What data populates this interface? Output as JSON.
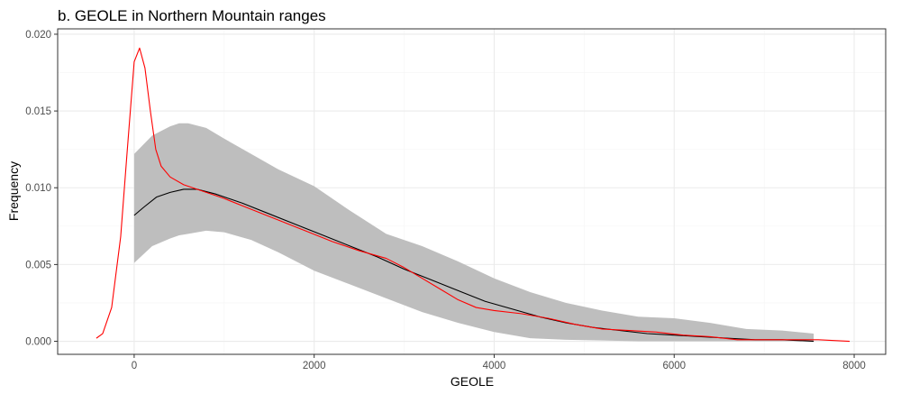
{
  "chart_data": {
    "type": "line",
    "title": "b. GEOLE in Northern Mountain ranges",
    "xlabel": "GEOLE",
    "ylabel": "Frequency",
    "xlim": [
      -850,
      8350
    ],
    "ylim": [
      -0.00085,
      0.02035
    ],
    "x_ticks": [
      0,
      2000,
      4000,
      6000,
      8000
    ],
    "x_tick_labels": [
      "0",
      "2000",
      "4000",
      "6000",
      "8000"
    ],
    "y_ticks": [
      0,
      0.005,
      0.01,
      0.015,
      0.02
    ],
    "y_tick_labels": [
      "0.000",
      "0.005",
      "0.010",
      "0.015",
      "0.020"
    ],
    "grid": true,
    "colors": {
      "panel_border": "#333333",
      "grid_major": "#ebebeb",
      "grid_minor": "#f5f5f5",
      "band": "#bebebe",
      "mean_line": "#000000",
      "observed_line": "#ff0000"
    },
    "series": [
      {
        "type": "band",
        "x": [
          0,
          200,
          400,
          500,
          600,
          800,
          1000,
          1300,
          1600,
          2000,
          2400,
          2800,
          3200,
          3600,
          4000,
          4400,
          4800,
          5200,
          5600,
          6000,
          6400,
          6800,
          7200,
          7550
        ],
        "lower": [
          0.0051,
          0.0062,
          0.0067,
          0.0069,
          0.007,
          0.0072,
          0.0071,
          0.0066,
          0.0058,
          0.0046,
          0.0037,
          0.0028,
          0.0019,
          0.0012,
          0.0006,
          0.0002,
          0.0001,
          5e-05,
          0.0,
          0.0,
          0.0,
          0.0,
          0.0,
          0.0
        ],
        "upper": [
          0.0122,
          0.0134,
          0.014,
          0.0142,
          0.0142,
          0.0139,
          0.0132,
          0.0122,
          0.0112,
          0.0101,
          0.0085,
          0.007,
          0.0062,
          0.0052,
          0.0041,
          0.0032,
          0.0025,
          0.002,
          0.0016,
          0.0015,
          0.0012,
          0.0008,
          0.0007,
          0.0005
        ]
      },
      {
        "type": "line",
        "x": [
          0,
          100,
          250,
          400,
          550,
          700,
          900,
          1200,
          1500,
          1800,
          2100,
          2400,
          2700,
          3000,
          3300,
          3600,
          3900,
          4200,
          4500,
          4800,
          5100,
          5400,
          5700,
          6000,
          6300,
          6600,
          6900,
          7200,
          7550
        ],
        "values": [
          0.0082,
          0.0087,
          0.0094,
          0.0097,
          0.0099,
          0.0099,
          0.0096,
          0.009,
          0.0083,
          0.0076,
          0.0069,
          0.0062,
          0.0055,
          0.0047,
          0.004,
          0.0033,
          0.0026,
          0.0021,
          0.0016,
          0.0012,
          0.0009,
          0.0007,
          0.0005,
          0.0004,
          0.0003,
          0.0002,
          0.0001,
          0.0001,
          0.0
        ]
      },
      {
        "type": "line",
        "x": [
          -420,
          -350,
          -250,
          -150,
          -80,
          0,
          60,
          120,
          180,
          240,
          300,
          400,
          550,
          750,
          1000,
          1300,
          1600,
          1900,
          2200,
          2500,
          2800,
          3000,
          3200,
          3400,
          3600,
          3800,
          4000,
          4300,
          4600,
          4900,
          5200,
          5500,
          5800,
          6100,
          6400,
          6700,
          7000,
          7300,
          7600,
          7950
        ],
        "values": [
          0.0002,
          0.0005,
          0.0022,
          0.0068,
          0.0122,
          0.0182,
          0.0191,
          0.0178,
          0.015,
          0.0125,
          0.0114,
          0.0107,
          0.0102,
          0.0098,
          0.0093,
          0.0086,
          0.0079,
          0.0072,
          0.0065,
          0.0059,
          0.0054,
          0.0048,
          0.0041,
          0.0034,
          0.0027,
          0.0022,
          0.002,
          0.0018,
          0.0015,
          0.0011,
          0.0008,
          0.0007,
          0.0006,
          0.0004,
          0.0003,
          0.0001,
          0.0001,
          0.0001,
          0.0001,
          0.0
        ]
      }
    ]
  }
}
